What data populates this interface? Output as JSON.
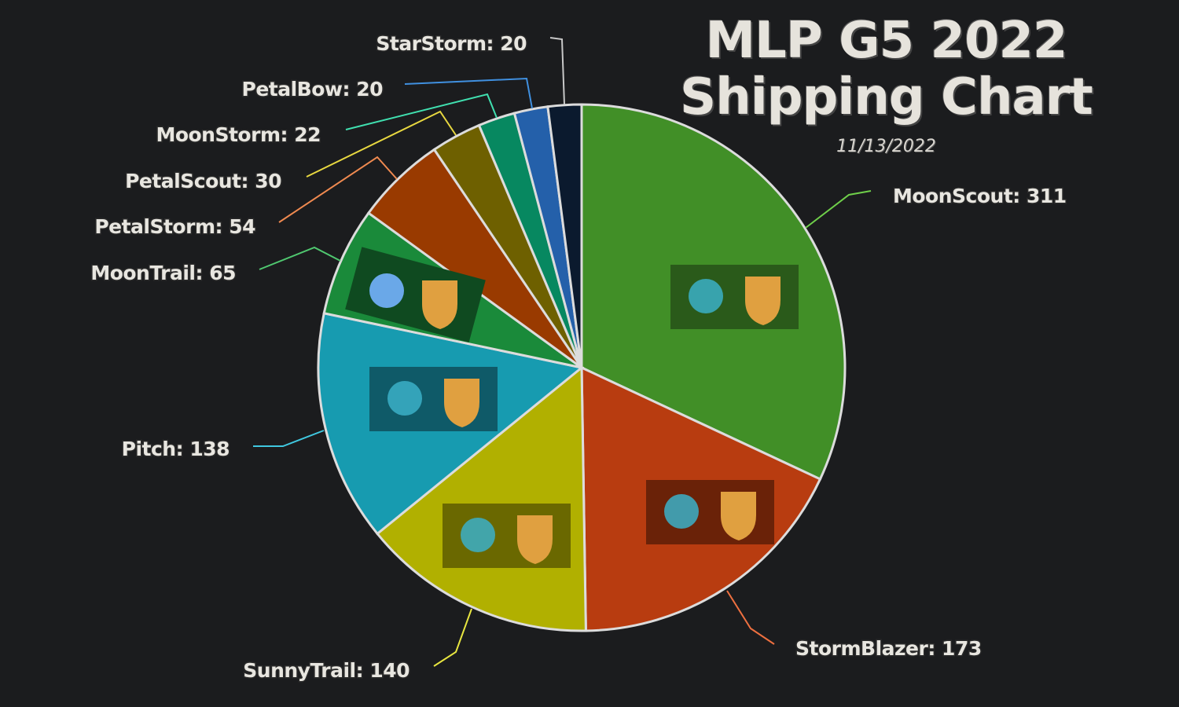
{
  "chart_data": {
    "type": "pie",
    "title_line1": "MLP G5 2022",
    "title_line2": "Shipping Chart",
    "subtitle": "11/13/2022",
    "start_angle": "top",
    "direction": "clockwise",
    "slices": [
      {
        "name": "MoonScout",
        "value": 311,
        "color": "#418f27",
        "line": "#6fcf4a"
      },
      {
        "name": "StormBlazer",
        "value": 173,
        "color": "#b83c10",
        "line": "#ee7040"
      },
      {
        "name": "SunnyTrail",
        "value": 140,
        "color": "#b1b000",
        "line": "#e8e640"
      },
      {
        "name": "Pitch",
        "value": 138,
        "color": "#179bb0",
        "line": "#40c8e0"
      },
      {
        "name": "MoonTrail",
        "value": 65,
        "color": "#1a8a3a",
        "line": "#50c870"
      },
      {
        "name": "PetalStorm",
        "value": 54,
        "color": "#993a00",
        "line": "#f08a50"
      },
      {
        "name": "PetalScout",
        "value": 30,
        "color": "#6e6000",
        "line": "#e8d840"
      },
      {
        "name": "MoonStorm",
        "value": 22,
        "color": "#078860",
        "line": "#40e0b0"
      },
      {
        "name": "PetalBow",
        "value": 20,
        "color": "#2460aa",
        "line": "#4090e0"
      },
      {
        "name": "StarStorm",
        "value": 20,
        "color": "#0b1a2e",
        "line": "#c8c8c8"
      }
    ]
  }
}
